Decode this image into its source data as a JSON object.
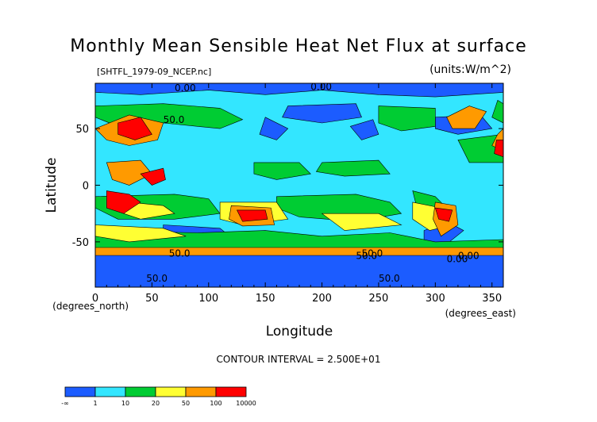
{
  "chart_data": {
    "type": "heatmap",
    "title": "Monthly Mean Sensible Heat Net Flux at surface",
    "subtitle_left": "[SHTFL_1979-09_NCEP.nc]",
    "subtitle_right": "(units:W/m^2)",
    "xlabel": "Longitude",
    "ylabel": "Latitude",
    "x_unit_label": "(degrees_east)",
    "y_unit_label": "(degrees_north)",
    "xlim": [
      0,
      360
    ],
    "ylim": [
      -90,
      90
    ],
    "x_ticks": [
      0,
      50,
      100,
      150,
      200,
      250,
      300,
      350
    ],
    "y_ticks": [
      -50,
      0,
      50
    ],
    "contour_interval_text": "CONTOUR INTERVAL = 2.500E+01",
    "contour_labels": [
      "0.00",
      "50.0",
      "0.00",
      "50.0",
      "50.0",
      "0.00",
      "50.0",
      "0.00",
      "50.0",
      "50.0"
    ],
    "colorbar": {
      "boundaries": [
        "-∞",
        "1",
        "10",
        "20",
        "50",
        "100",
        "10000"
      ],
      "colors": [
        "#1c5cff",
        "#33e6ff",
        "#00cc33",
        "#ffff33",
        "#ff9a00",
        "#ff0000"
      ]
    }
  }
}
